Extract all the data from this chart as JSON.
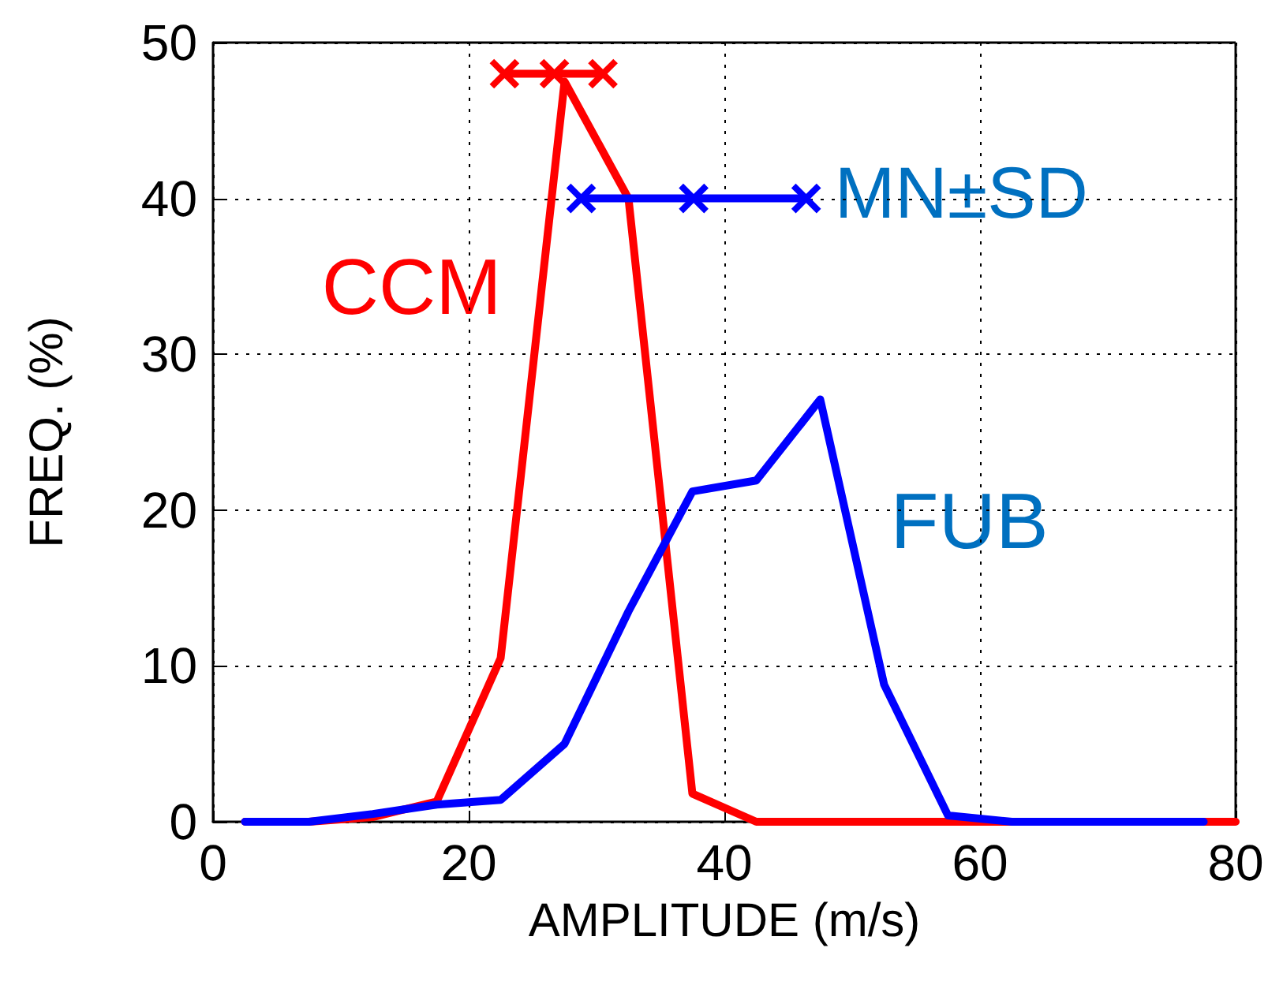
{
  "chart_data": {
    "type": "line",
    "xlabel": "AMPLITUDE (m/s)",
    "ylabel": "FREQ. (%)",
    "xlim": [
      0,
      80
    ],
    "xticks": [
      0,
      20,
      40,
      60,
      80
    ],
    "ylim": [
      0,
      50
    ],
    "yticks": [
      0,
      10,
      20,
      30,
      40,
      50
    ],
    "grid": true,
    "marker": "none",
    "line_style": "solid",
    "series": [
      {
        "name": "CCM",
        "color": "#ff0000",
        "x": [
          2.5,
          7.5,
          12.5,
          17.5,
          22.5,
          27.5,
          32.5,
          37.5,
          42.5,
          47.5,
          52.5,
          57.5,
          62.5,
          67.5,
          72.5,
          77.5,
          80
        ],
        "values": [
          0,
          0,
          0.3,
          1.3,
          10.5,
          47.5,
          40,
          1.8,
          0,
          0,
          0,
          0,
          0,
          0,
          0,
          0,
          0
        ]
      },
      {
        "name": "FUB",
        "color": "#0000ff",
        "x": [
          2.5,
          7.5,
          12.5,
          17.5,
          22.5,
          27.5,
          32.5,
          37.5,
          42.5,
          47.5,
          52.5,
          57.5,
          62.5,
          67.5,
          72.5,
          77.5
        ],
        "values": [
          0,
          0,
          0.5,
          1.1,
          1.4,
          5,
          13.5,
          21.2,
          21.9,
          27.1,
          8.8,
          0.4,
          0,
          0,
          0,
          0
        ]
      },
      {
        "color": "#ff0000",
        "marker": "cross",
        "x": [
          22.8,
          26.7,
          30.5
        ],
        "values": [
          48,
          48,
          48
        ]
      },
      {
        "color": "#0000ff",
        "marker": "cross",
        "x": [
          28.8,
          37.6,
          46.4
        ],
        "values": [
          40,
          40,
          40
        ]
      }
    ],
    "annotations": [
      {
        "text": "MN±SD",
        "x": 46.4,
        "y": 40
      }
    ]
  }
}
